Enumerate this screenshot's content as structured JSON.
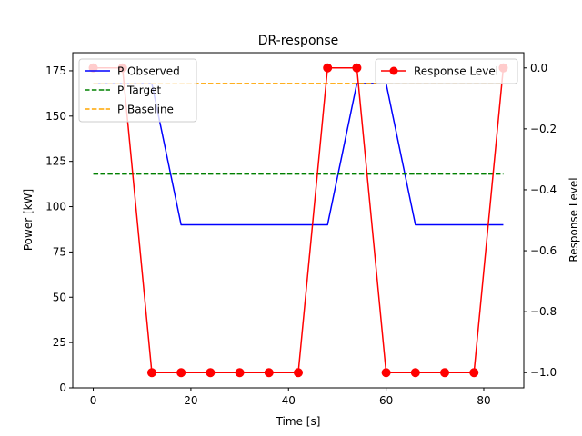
{
  "chart_data": {
    "type": "line",
    "title": "DR-response",
    "xlabel": "Time [s]",
    "ylabel": "Power [kW]",
    "ylabel_right": "Response Level",
    "xlim": [
      -4.2,
      88.2
    ],
    "ylim": [
      0,
      185
    ],
    "ylim_right": [
      -1.05,
      0.05
    ],
    "x_ticks": [
      0,
      20,
      40,
      60,
      80
    ],
    "y_ticks": [
      0,
      25,
      50,
      75,
      100,
      125,
      150,
      175
    ],
    "y_ticks_right": [
      0.0,
      -0.2,
      -0.4,
      -0.6,
      -0.8,
      -1.0
    ],
    "y_tick_labels_right": [
      "0.0",
      "−0.2",
      "−0.4",
      "−0.6",
      "−0.8",
      "−1.0"
    ],
    "grid": false,
    "series": [
      {
        "name": "P Observed",
        "axis": "left",
        "color": "#0000ff",
        "style": "solid",
        "x": [
          0,
          6,
          12,
          18,
          24,
          30,
          36,
          42,
          48,
          54,
          60,
          66,
          72,
          78,
          84
        ],
        "values": [
          168,
          168,
          168,
          90,
          90,
          90,
          90,
          90,
          90,
          168,
          168,
          90,
          90,
          90,
          90
        ]
      },
      {
        "name": "P Target",
        "axis": "left",
        "color": "#008000",
        "style": "dashed",
        "x": [
          0,
          84
        ],
        "values": [
          118,
          118
        ]
      },
      {
        "name": "P Baseline",
        "axis": "left",
        "color": "#ffa500",
        "style": "dashed",
        "x": [
          0,
          84
        ],
        "values": [
          168,
          168
        ]
      },
      {
        "name": "Response Level",
        "axis": "right",
        "color": "#ff0000",
        "style": "solid",
        "marker": "circle",
        "x": [
          0,
          6,
          12,
          18,
          24,
          30,
          36,
          42,
          48,
          54,
          60,
          66,
          72,
          78,
          84
        ],
        "values": [
          0,
          0,
          -1,
          -1,
          -1,
          -1,
          -1,
          -1,
          0,
          0,
          -1,
          -1,
          -1,
          -1,
          0
        ]
      }
    ],
    "legends": [
      {
        "placement": "upper-left",
        "entries": [
          "P Observed",
          "P Target",
          "P Baseline"
        ]
      },
      {
        "placement": "upper-right",
        "entries": [
          "Response Level"
        ]
      }
    ]
  }
}
